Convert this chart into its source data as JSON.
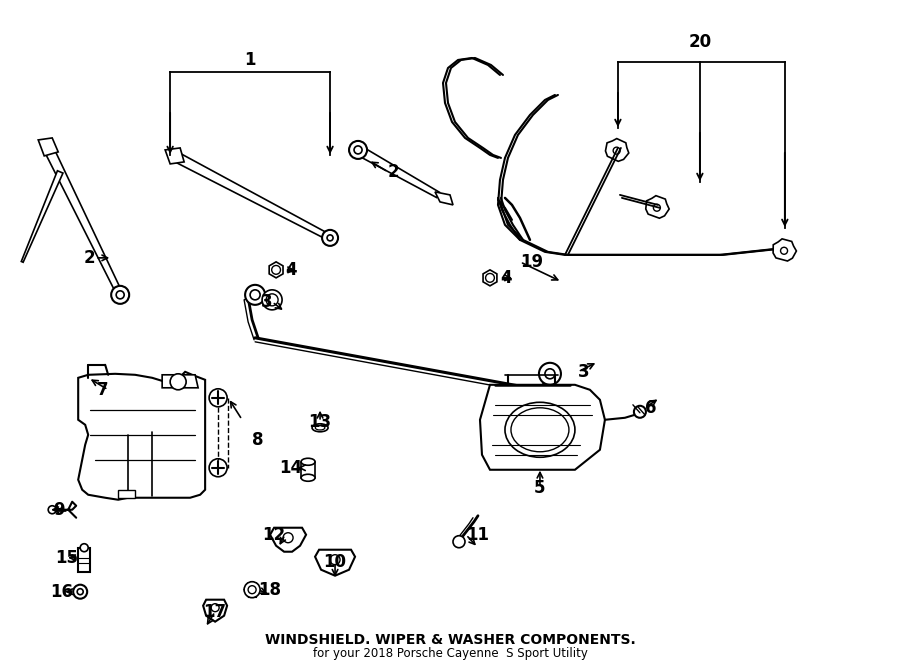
{
  "title": "WINDSHIELD. WIPER & WASHER COMPONENTS.",
  "subtitle": "for your 2018 Porsche Cayenne  S Sport Utility",
  "bg_color": "#ffffff",
  "line_color": "#000000",
  "title_fontsize": 10,
  "subtitle_fontsize": 8.5,
  "label_fontsize": 12
}
